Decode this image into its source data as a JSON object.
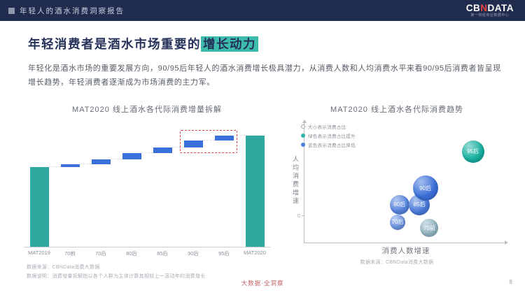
{
  "header": {
    "report_title": "年轻人的酒水消费洞察报告",
    "logo": {
      "part1": "CB",
      "part2": "N",
      "part3": "DATA",
      "tagline": "第一财经商业数据中心"
    }
  },
  "page": {
    "title_prefix": "年轻消费者是酒水市场重要的",
    "title_highlight": "增长动力",
    "body_text": "年轻化是酒水市场的重要发展方向，90/95后年轻人的酒水消费增长极具潜力，从消费人数和人均消费水平来看90/95后消费者皆呈现增长趋势，年轻消费者逐渐成为市场消费的主力军。",
    "footer_center": "大数据·全洞察",
    "page_number": "8"
  },
  "left_chart": {
    "title": "MAT2020 线上酒水各代际消费增量拆解",
    "source": "数据来源：CBNData消费大数据",
    "note": "数据说明：消费增量拆解指以各个人群为主体计算其相较上一滚动年的消费增长"
  },
  "right_chart": {
    "title": "MAT2020 线上酒水各代际消费趋势",
    "source": "数据来源：CBNData消费大数据",
    "xlabel": "消费人数增速",
    "ylabel": "人均消费增速",
    "origin_label": "0",
    "legend": [
      {
        "label": "大小表示消费占比",
        "hollow": true
      },
      {
        "label": "绿色表示消费占比提升",
        "color": "#2ab5a8"
      },
      {
        "label": "蓝色表示消费占比降低",
        "color": "#4a7fe0"
      }
    ]
  },
  "chart_data": [
    {
      "type": "bar",
      "subtype": "waterfall",
      "title": "MAT2020 线上酒水各代际消费增量拆解",
      "categories": [
        "MAT2019",
        "70前",
        "70后",
        "80后",
        "85后",
        "90后",
        "95后",
        "MAT2020"
      ],
      "values": [
        100,
        4,
        6,
        8,
        7,
        9,
        6,
        140
      ],
      "bar_types": [
        "total",
        "inc",
        "inc",
        "inc",
        "inc",
        "inc",
        "inc",
        "total"
      ],
      "highlight_categories": [
        "90后",
        "95后"
      ],
      "colors": {
        "total": "#2fa9a0",
        "increment": "#3b6fd9",
        "highlight_box": "#e0484e"
      },
      "note": "values are estimated relative index (axis unlabeled)"
    },
    {
      "type": "scatter",
      "subtype": "bubble",
      "title": "MAT2020 线上酒水各代际消费趋势",
      "xlabel": "消费人数增速",
      "ylabel": "人均消费增速",
      "zero_line_y_rel": 23,
      "note": "axes unlabeled; x/y are estimated relative positions 0-100, size = bubble diameter px",
      "points": [
        {
          "label": "70前",
          "x": 63,
          "y": 13,
          "size": 26,
          "color": "#93b6c4",
          "trend": "down"
        },
        {
          "label": "70后",
          "x": 47,
          "y": 18,
          "size": 22,
          "color": "#6c95e3",
          "trend": "down"
        },
        {
          "label": "80后",
          "x": 48,
          "y": 33,
          "size": 28,
          "color": "#5684de",
          "trend": "down"
        },
        {
          "label": "85后",
          "x": 58,
          "y": 33,
          "size": 30,
          "color": "#4a7ada",
          "trend": "down"
        },
        {
          "label": "90后",
          "x": 61,
          "y": 47,
          "size": 36,
          "color": "#3a6fd8",
          "trend": "down"
        },
        {
          "label": "95后",
          "x": 85,
          "y": 78,
          "size": 32,
          "color": "#17b0a0",
          "trend": "up"
        }
      ]
    }
  ]
}
